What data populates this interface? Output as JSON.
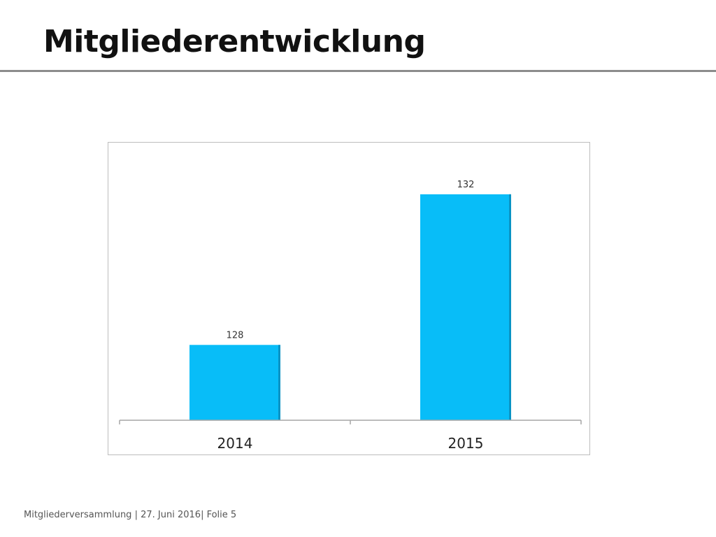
{
  "slide": {
    "title": "Mitgliederentwicklung"
  },
  "footer": {
    "event": "Mitgliederversammlung",
    "sep1": " | ",
    "date": "27. Juni 2016",
    "sep2": "| ",
    "slide_label": "Folie",
    "slide_number": "5"
  },
  "colors": {
    "bar_fill": "#08BDF8",
    "bar_edge": "#0a93c4",
    "axis": "#a6a6a6",
    "text": "#333333"
  },
  "chart_data": {
    "type": "bar",
    "categories": [
      "2014",
      "2015"
    ],
    "values": [
      128,
      132
    ],
    "data_labels": [
      "128",
      "132"
    ],
    "title": "",
    "xlabel": "",
    "ylabel": "",
    "ylim": [
      126,
      133
    ],
    "grid": false,
    "legend": "none"
  }
}
